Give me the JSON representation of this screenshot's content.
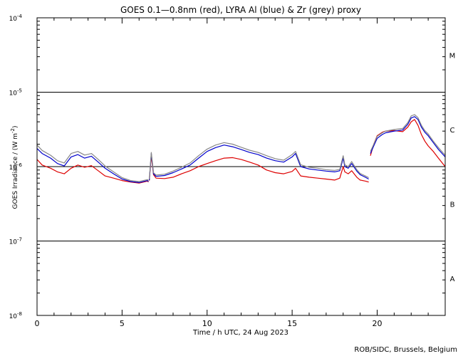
{
  "chart_data": {
    "type": "line",
    "title": "GOES 0.1—0.8nm (red), LYRA Al (blue) & Zr (grey) proxy",
    "xlabel": "Time / h UTC, 24 Aug 2023",
    "ylabel_main": "GOES Irradiance / (W m",
    "ylabel_sup": "-2",
    "ylabel_end": ")",
    "xlim": [
      0,
      24
    ],
    "x_ticks": [
      0,
      5,
      10,
      15,
      20
    ],
    "x_tick_labels": [
      "0",
      "5",
      "10",
      "15",
      "20"
    ],
    "y_scale": "log",
    "ylim_exp": [
      -8,
      -4
    ],
    "y_ticks_exp": [
      -4,
      -5,
      -6,
      -7,
      -8
    ],
    "y_tick_base": "10",
    "y_tick_exp_labels": [
      "-4",
      "-5",
      "-6",
      "-7",
      "-8"
    ],
    "threshold_lines_exp": [
      -5,
      -6,
      -7
    ],
    "flare_classes": [
      {
        "label": "M",
        "exp": -4.5
      },
      {
        "label": "C",
        "exp": -5.5
      },
      {
        "label": "B",
        "exp": -6.5
      },
      {
        "label": "A",
        "exp": -7.5
      }
    ],
    "credit": "ROB/SIDC, Brussels, Belgium",
    "series": [
      {
        "name": "GOES 0.1-0.8nm",
        "color": "#dd0000",
        "segments": [
          {
            "x": [
              0,
              0.3,
              0.8,
              1.2,
              1.6,
              2.0,
              2.4,
              2.8,
              3.2,
              3.6,
              4.0,
              4.5,
              5.0,
              5.5,
              6.0,
              6.5,
              6.55
            ],
            "y": [
              1.25e-06,
              1.05e-06,
              9.5e-07,
              8.5e-07,
              8e-07,
              9.5e-07,
              1.05e-06,
              9.8e-07,
              1.03e-06,
              8.8e-07,
              7.5e-07,
              7e-07,
              6.5e-07,
              6.2e-07,
              6e-07,
              6.4e-07,
              6.2e-07
            ]
          },
          {
            "x": [
              6.6,
              6.72,
              6.85,
              7.0,
              7.5,
              8.0,
              8.5,
              9.0,
              9.5,
              10.0,
              10.5,
              11.0,
              11.5,
              12.0,
              12.5,
              13.0,
              13.5,
              14.0,
              14.5,
              15.0,
              15.2,
              15.5,
              16.0,
              16.5,
              17.0,
              17.5,
              17.8,
              18.0,
              18.1,
              18.3,
              18.5,
              18.8,
              19.0,
              19.3,
              19.5
            ],
            "y": [
              6.5e-07,
              1.4e-06,
              7.8e-07,
              7e-07,
              6.9e-07,
              7.2e-07,
              8e-07,
              8.8e-07,
              1e-06,
              1.1e-06,
              1.2e-06,
              1.3e-06,
              1.32e-06,
              1.25e-06,
              1.15e-06,
              1.05e-06,
              9e-07,
              8.3e-07,
              8e-07,
              8.6e-07,
              9.5e-07,
              7.5e-07,
              7.2e-07,
              7e-07,
              6.8e-07,
              6.6e-07,
              7e-07,
              1e-06,
              8.5e-07,
              8e-07,
              8.8e-07,
              7.2e-07,
              6.6e-07,
              6.4e-07,
              6.2e-07
            ]
          },
          {
            "x": [
              19.6,
              19.8,
              20.0,
              20.3,
              20.5,
              21.0,
              21.5,
              21.8,
              22.0,
              22.2,
              22.4,
              22.6,
              22.8,
              23.0,
              23.3,
              23.6,
              24.0
            ],
            "y": [
              1.4e-06,
              2e-06,
              2.6e-06,
              2.9e-06,
              3e-06,
              3.05e-06,
              2.95e-06,
              3.4e-06,
              4e-06,
              4.3e-06,
              3.6e-06,
              2.7e-06,
              2.2e-06,
              1.9e-06,
              1.6e-06,
              1.3e-06,
              1e-06
            ]
          }
        ]
      },
      {
        "name": "LYRA Al proxy",
        "color": "#0000cc",
        "segments": [
          {
            "x": [
              0,
              0.3,
              0.8,
              1.2,
              1.6,
              2.0,
              2.4,
              2.8,
              3.2,
              3.6,
              4.0,
              4.5,
              5.0,
              5.5,
              6.0,
              6.5,
              6.55
            ],
            "y": [
              1.75e-06,
              1.5e-06,
              1.3e-06,
              1.1e-06,
              1.02e-06,
              1.35e-06,
              1.45e-06,
              1.3e-06,
              1.38e-06,
              1.15e-06,
              9.5e-07,
              8e-07,
              6.8e-07,
              6.3e-07,
              6.1e-07,
              6.5e-07,
              6.3e-07
            ]
          },
          {
            "x": [
              6.6,
              6.72,
              6.85,
              7.0,
              7.5,
              8.0,
              8.5,
              9.0,
              9.5,
              10.0,
              10.5,
              11.0,
              11.5,
              12.0,
              12.5,
              13.0,
              13.5,
              14.0,
              14.5,
              15.0,
              15.2,
              15.5,
              16.0,
              16.5,
              17.0,
              17.5,
              17.8,
              18.0,
              18.1,
              18.3,
              18.5,
              18.8,
              19.0,
              19.3,
              19.5
            ],
            "y": [
              6.6e-07,
              1.5e-06,
              8e-07,
              7.4e-07,
              7.6e-07,
              8.3e-07,
              9.3e-07,
              1.05e-06,
              1.3e-06,
              1.6e-06,
              1.8e-06,
              1.95e-06,
              1.85e-06,
              1.7e-06,
              1.55e-06,
              1.45e-06,
              1.3e-06,
              1.2e-06,
              1.15e-06,
              1.35e-06,
              1.5e-06,
              1e-06,
              9.3e-07,
              9e-07,
              8.7e-07,
              8.5e-07,
              8.8e-07,
              1.3e-06,
              1e-06,
              9.5e-07,
              1.1e-06,
              8.7e-07,
              7.8e-07,
              7.2e-07,
              6.8e-07
            ]
          },
          {
            "x": [
              19.6,
              19.8,
              20.0,
              20.3,
              20.5,
              21.0,
              21.5,
              21.8,
              22.0,
              22.2,
              22.4,
              22.6,
              22.8,
              23.0,
              23.3,
              23.6,
              24.0
            ],
            "y": [
              1.5e-06,
              1.9e-06,
              2.4e-06,
              2.7e-06,
              2.85e-06,
              3e-06,
              3.1e-06,
              3.7e-06,
              4.5e-06,
              4.7e-06,
              4.3e-06,
              3.4e-06,
              2.9e-06,
              2.6e-06,
              2.1e-06,
              1.7e-06,
              1.35e-06
            ]
          }
        ]
      },
      {
        "name": "LYRA Zr proxy",
        "color": "#888888",
        "segments": [
          {
            "x": [
              0,
              0.3,
              0.8,
              1.2,
              1.6,
              2.0,
              2.4,
              2.8,
              3.2,
              3.6,
              4.0,
              4.5,
              5.0,
              5.5,
              6.0,
              6.5,
              6.55
            ],
            "y": [
              1.95e-06,
              1.65e-06,
              1.42e-06,
              1.2e-06,
              1.12e-06,
              1.5e-06,
              1.6e-06,
              1.43e-06,
              1.5e-06,
              1.25e-06,
              1.02e-06,
              8.5e-07,
              7.1e-07,
              6.5e-07,
              6.3e-07,
              6.7e-07,
              6.5e-07
            ]
          },
          {
            "x": [
              6.6,
              6.72,
              6.85,
              7.0,
              7.5,
              8.0,
              8.5,
              9.0,
              9.5,
              10.0,
              10.5,
              11.0,
              11.5,
              12.0,
              12.5,
              13.0,
              13.5,
              14.0,
              14.5,
              15.0,
              15.2,
              15.5,
              16.0,
              16.5,
              17.0,
              17.5,
              17.8,
              18.0,
              18.1,
              18.3,
              18.5,
              18.8,
              19.0,
              19.3,
              19.5
            ],
            "y": [
              6.8e-07,
              1.55e-06,
              8.3e-07,
              7.7e-07,
              7.9e-07,
              8.7e-07,
              9.8e-07,
              1.12e-06,
              1.4e-06,
              1.72e-06,
              1.95e-06,
              2.1e-06,
              2e-06,
              1.82e-06,
              1.66e-06,
              1.55e-06,
              1.4e-06,
              1.28e-06,
              1.22e-06,
              1.45e-06,
              1.6e-06,
              1.06e-06,
              9.8e-07,
              9.5e-07,
              9.1e-07,
              8.9e-07,
              9.2e-07,
              1.4e-06,
              1.06e-06,
              1e-06,
              1.17e-06,
              9.1e-07,
              8.1e-07,
              7.5e-07,
              7.1e-07
            ]
          },
          {
            "x": [
              19.6,
              19.8,
              20.0,
              20.3,
              20.5,
              21.0,
              21.5,
              21.8,
              22.0,
              22.2,
              22.4,
              22.6,
              22.8,
              23.0,
              23.3,
              23.6,
              24.0
            ],
            "y": [
              1.6e-06,
              2e-06,
              2.55e-06,
              2.85e-06,
              3e-06,
              3.15e-06,
              3.25e-06,
              3.9e-06,
              4.8e-06,
              5e-06,
              4.55e-06,
              3.6e-06,
              3.05e-06,
              2.75e-06,
              2.2e-06,
              1.8e-06,
              1.42e-06
            ]
          }
        ]
      }
    ]
  }
}
